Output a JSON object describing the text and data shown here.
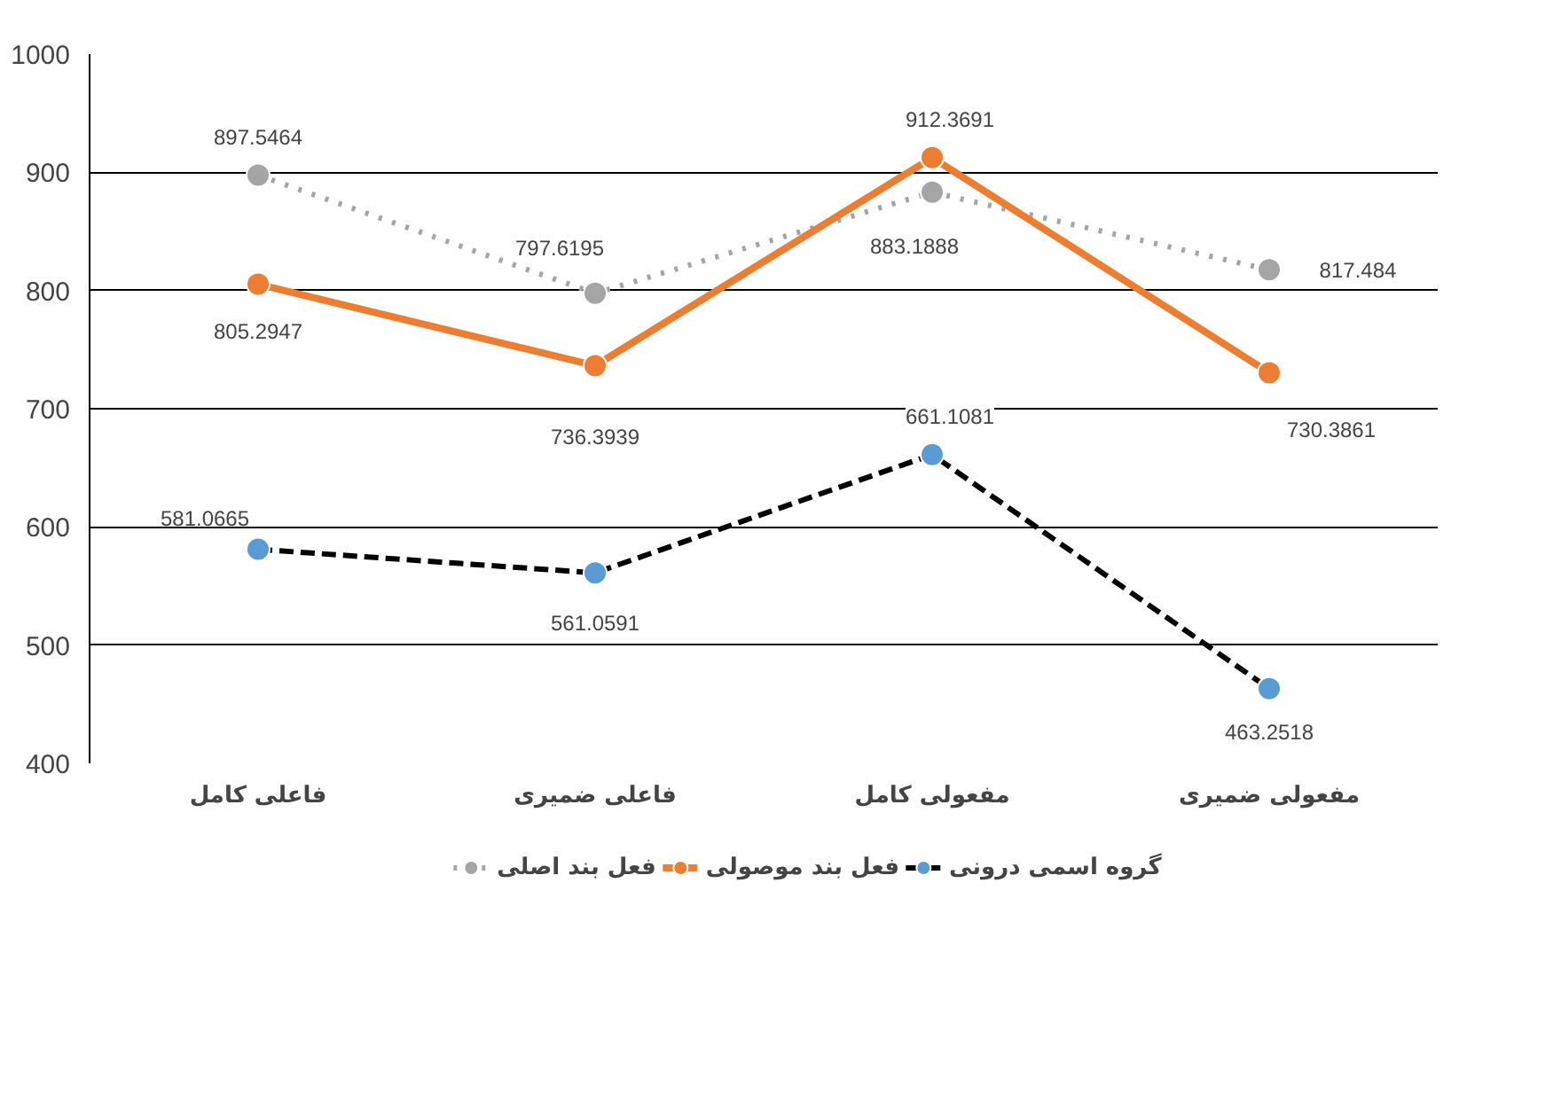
{
  "chart_data": {
    "type": "line",
    "categories": [
      "فاعلی کامل",
      "فاعلی ضمیری",
      "مفعولی کامل",
      "مفعولی ضمیری"
    ],
    "series": [
      {
        "name": "فعل بند اصلی",
        "color": "#a5a5a5",
        "line_style": "dotted",
        "values": [
          897.5464,
          797.6195,
          883.1888,
          817.484
        ]
      },
      {
        "name": "فعل بند موصولی",
        "color": "#ed7d31",
        "line_style": "solid",
        "values": [
          805.2947,
          736.3939,
          912.3691,
          730.3861
        ]
      },
      {
        "name": "گروه اسمی درونی",
        "color": "#5b9bd5",
        "line_style": "dashed",
        "values": [
          581.0665,
          561.0591,
          661.1081,
          463.2518
        ]
      }
    ],
    "ylim": [
      400,
      1000
    ],
    "yticks": [
      400,
      500,
      600,
      700,
      800,
      900,
      1000
    ],
    "grid": "y",
    "legend": "bottom",
    "marker": "circle",
    "data_labels": true
  }
}
